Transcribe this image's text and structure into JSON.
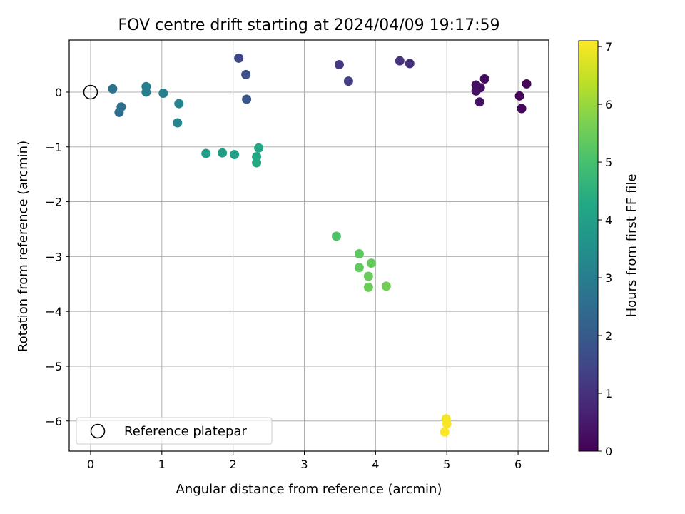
{
  "chart_data": {
    "type": "scatter",
    "title": "FOV centre drift starting at 2024/04/09 19:17:59",
    "xlabel": "Angular distance from reference (arcmin)",
    "ylabel": "Rotation from reference (arcmin)",
    "xlim": [
      -0.3,
      6.43
    ],
    "ylim": [
      -6.55,
      0.95
    ],
    "xticks": [
      0,
      1,
      2,
      3,
      4,
      5,
      6
    ],
    "yticks": [
      0,
      -1,
      -2,
      -3,
      -4,
      -5,
      -6
    ],
    "grid": true,
    "legend": {
      "placement": "lower-left",
      "entries": [
        "Reference platepar"
      ]
    },
    "reference_point": {
      "x": 0,
      "y": 0
    },
    "colorbar": {
      "label": "Hours from first FF file",
      "colormap": "viridis",
      "range": [
        0,
        7.1
      ],
      "ticks": [
        0,
        1,
        2,
        3,
        4,
        5,
        6,
        7
      ]
    },
    "points": [
      {
        "x": 6.12,
        "y": 0.15,
        "c": 0.05
      },
      {
        "x": 6.02,
        "y": -0.07,
        "c": 0.1
      },
      {
        "x": 6.05,
        "y": -0.3,
        "c": 0.15
      },
      {
        "x": 5.53,
        "y": 0.24,
        "c": 0.2
      },
      {
        "x": 5.47,
        "y": 0.08,
        "c": 0.25
      },
      {
        "x": 5.41,
        "y": 0.13,
        "c": 0.3
      },
      {
        "x": 5.41,
        "y": 0.02,
        "c": 0.35
      },
      {
        "x": 5.46,
        "y": -0.18,
        "c": 0.4
      },
      {
        "x": 4.48,
        "y": 0.52,
        "c": 1.0
      },
      {
        "x": 4.34,
        "y": 0.57,
        "c": 1.05
      },
      {
        "x": 3.49,
        "y": 0.5,
        "c": 1.2
      },
      {
        "x": 3.62,
        "y": 0.2,
        "c": 1.3
      },
      {
        "x": 2.08,
        "y": 0.62,
        "c": 1.5
      },
      {
        "x": 2.18,
        "y": 0.32,
        "c": 1.7
      },
      {
        "x": 2.19,
        "y": -0.13,
        "c": 1.9
      },
      {
        "x": 0.4,
        "y": -0.37,
        "c": 2.5
      },
      {
        "x": 0.43,
        "y": -0.27,
        "c": 2.6
      },
      {
        "x": 0.31,
        "y": 0.06,
        "c": 2.7
      },
      {
        "x": 0.78,
        "y": 0.1,
        "c": 3.0
      },
      {
        "x": 0.78,
        "y": 0.0,
        "c": 3.05
      },
      {
        "x": 1.02,
        "y": -0.02,
        "c": 3.1
      },
      {
        "x": 1.24,
        "y": -0.21,
        "c": 3.15
      },
      {
        "x": 1.22,
        "y": -0.56,
        "c": 3.2
      },
      {
        "x": 1.62,
        "y": -1.12,
        "c": 3.9
      },
      {
        "x": 1.85,
        "y": -1.11,
        "c": 3.95
      },
      {
        "x": 2.02,
        "y": -1.14,
        "c": 4.0
      },
      {
        "x": 2.36,
        "y": -1.02,
        "c": 4.2
      },
      {
        "x": 2.33,
        "y": -1.18,
        "c": 4.25
      },
      {
        "x": 2.33,
        "y": -1.29,
        "c": 4.3
      },
      {
        "x": 3.45,
        "y": -2.63,
        "c": 5.1
      },
      {
        "x": 3.77,
        "y": -2.95,
        "c": 5.3
      },
      {
        "x": 3.77,
        "y": -3.2,
        "c": 5.35
      },
      {
        "x": 3.94,
        "y": -3.12,
        "c": 5.4
      },
      {
        "x": 3.9,
        "y": -3.36,
        "c": 5.45
      },
      {
        "x": 3.9,
        "y": -3.56,
        "c": 5.5
      },
      {
        "x": 4.15,
        "y": -3.54,
        "c": 5.55
      },
      {
        "x": 4.99,
        "y": -5.96,
        "c": 7.0
      },
      {
        "x": 5.0,
        "y": -6.05,
        "c": 7.05
      },
      {
        "x": 4.97,
        "y": -6.2,
        "c": 7.1
      }
    ]
  }
}
